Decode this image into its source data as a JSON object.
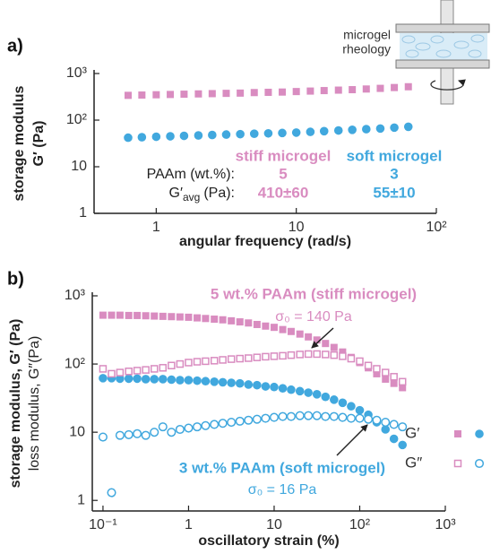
{
  "inset": {
    "lines": [
      "microgel",
      "rheology"
    ]
  },
  "chart_data": [
    {
      "type": "scatter",
      "panel_label": "a)",
      "x_label": "angular frequency (rad/s)",
      "y_label": [
        "storage modulus",
        "G′ (Pa)"
      ],
      "log_x": true,
      "log_y": true,
      "xlim": [
        0.36,
        100
      ],
      "ylim": [
        1,
        1000
      ],
      "xticks": [
        1,
        10,
        {
          "value": 100,
          "label": "10²"
        }
      ],
      "yticks": [
        1,
        10,
        {
          "value": 100,
          "label": "10²"
        },
        {
          "value": 1000,
          "label": "10³"
        }
      ],
      "x": [
        0.63,
        0.79,
        1,
        1.26,
        1.58,
        2,
        2.51,
        3.16,
        3.98,
        5.01,
        6.31,
        7.94,
        10,
        12.6,
        15.8,
        20,
        25.1,
        31.6,
        39.8,
        50.1,
        63.1
      ],
      "series": [
        {
          "name": "stiff microgel",
          "color": "#d98cc0",
          "marker": "square",
          "filled": true,
          "values": [
            340,
            345,
            350,
            355,
            360,
            365,
            370,
            375,
            380,
            390,
            395,
            400,
            410,
            420,
            430,
            440,
            450,
            465,
            480,
            500,
            520
          ]
        },
        {
          "name": "soft microgel",
          "color": "#41a8de",
          "marker": "circle",
          "filled": true,
          "values": [
            42,
            43,
            44,
            45,
            46,
            47,
            48,
            49,
            50,
            51,
            52,
            53,
            54,
            56,
            58,
            60,
            62,
            64,
            66,
            69,
            72
          ]
        }
      ],
      "table": {
        "rows": [
          {
            "label": "PAAm (wt.%):",
            "values": [
              5,
              3
            ]
          },
          {
            "label": {
              "symbol": "G′",
              "subscript": "avg",
              "unit": "(Pa):"
            },
            "values": [
              "410±60",
              "55±10"
            ]
          }
        ]
      }
    },
    {
      "type": "scatter",
      "panel_label": "b)",
      "x_label": "oscillatory strain (%)",
      "y_label": [
        "storage modulus, G′ (Pa)",
        "loss modulus, G″(Pa)"
      ],
      "log_x": true,
      "log_y": true,
      "xlim": [
        0.075,
        1000
      ],
      "ylim": [
        0.7,
        1000
      ],
      "xticks": [
        {
          "value": 0.1,
          "label": "10⁻¹"
        },
        1,
        10,
        {
          "value": 100,
          "label": "10²"
        },
        {
          "value": 1000,
          "label": "10³"
        }
      ],
      "yticks": [
        1,
        10,
        {
          "value": 100,
          "label": "10²"
        },
        {
          "value": 1000,
          "label": "10³"
        }
      ],
      "x": [
        0.1,
        0.126,
        0.158,
        0.2,
        0.251,
        0.316,
        0.398,
        0.501,
        0.631,
        0.794,
        1,
        1.26,
        1.58,
        2,
        2.51,
        3.16,
        3.98,
        5.01,
        6.31,
        7.94,
        10,
        12.6,
        15.8,
        20,
        25.1,
        31.6,
        39.8,
        50.1,
        63.1,
        79.4,
        100,
        126,
        158,
        200,
        251,
        316
      ],
      "series": [
        {
          "color": "#d98cc0",
          "marker": "square",
          "filled": true,
          "values": [
            520,
            520,
            520,
            515,
            515,
            510,
            505,
            500,
            495,
            490,
            485,
            475,
            465,
            455,
            445,
            430,
            415,
            400,
            380,
            360,
            345,
            320,
            300,
            275,
            250,
            225,
            200,
            175,
            150,
            125,
            105,
            88,
            72,
            60,
            52,
            45
          ]
        },
        {
          "color": "#d98cc0",
          "marker": "square",
          "filled": false,
          "values": [
            85,
            72,
            75,
            78,
            80,
            82,
            85,
            88,
            95,
            100,
            105,
            108,
            110,
            112,
            115,
            118,
            120,
            122,
            125,
            128,
            130,
            132,
            135,
            138,
            140,
            140,
            138,
            135,
            130,
            120,
            110,
            95,
            85,
            75,
            65,
            55
          ]
        },
        {
          "color": "#41a8de",
          "marker": "circle",
          "filled": true,
          "values": [
            62,
            62,
            61,
            61,
            61,
            60,
            60,
            60,
            59,
            58,
            58,
            57,
            56,
            55,
            54,
            53,
            52,
            50,
            49,
            47,
            46,
            44,
            42,
            40,
            38,
            36,
            33,
            30,
            27,
            24,
            21,
            18,
            14,
            11,
            8,
            6.5
          ]
        },
        {
          "color": "#41a8de",
          "marker": "circle",
          "filled": false,
          "values": [
            8.5,
            1.3,
            9,
            9.2,
            9.5,
            9,
            10,
            12,
            10,
            11,
            11.5,
            12,
            12.5,
            13,
            13.5,
            14,
            14.5,
            15,
            15.5,
            16,
            16.5,
            17,
            17,
            17.5,
            17.5,
            17.5,
            17,
            17,
            16.5,
            16,
            16,
            15.5,
            15,
            14,
            13,
            12
          ]
        }
      ],
      "legend": [
        {
          "label": "G′",
          "series": [
            0,
            2
          ]
        },
        {
          "label": "G″",
          "series": [
            1,
            3
          ]
        }
      ],
      "annotations": [
        {
          "lines": [
            "5 wt.% PAAm (stiff microgel)",
            "σ₀ = 140 Pa"
          ],
          "color": "#d98cc0"
        },
        {
          "lines": [
            "3 wt.% PAAm (soft microgel)",
            "σ₀ = 16 Pa"
          ],
          "color": "#41a8de"
        }
      ]
    }
  ]
}
